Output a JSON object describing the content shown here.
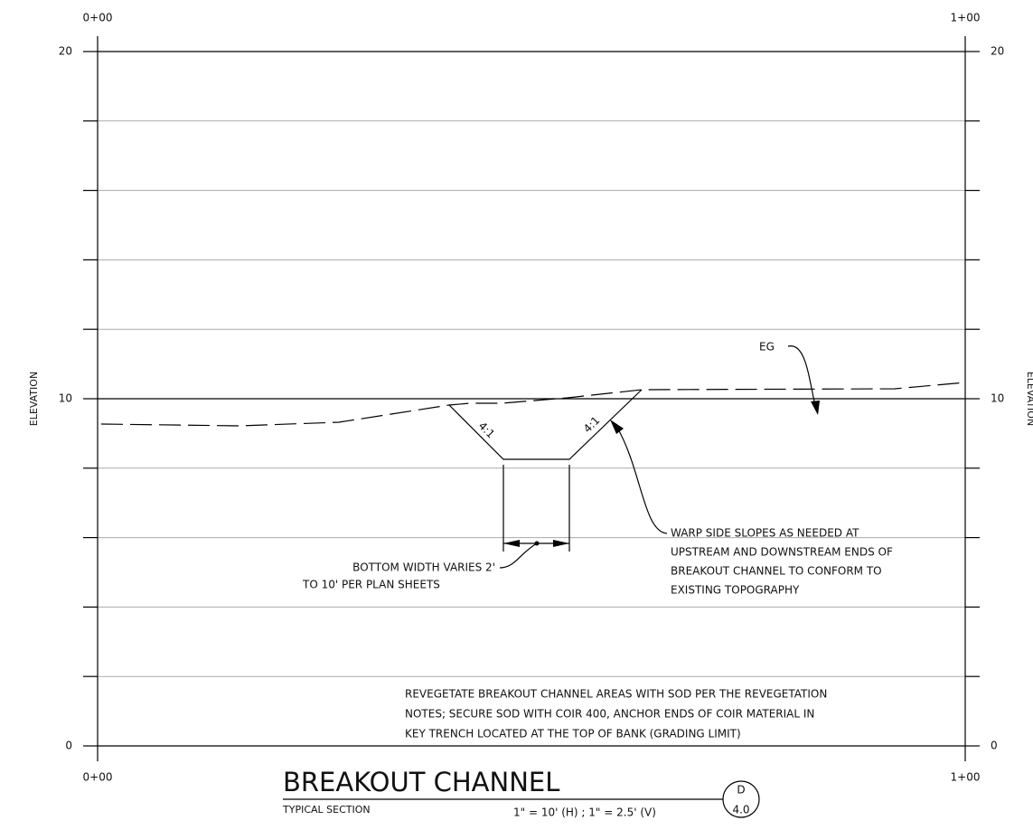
{
  "stations": {
    "top_left": "0+00",
    "top_right": "1+00",
    "bottom_left": "0+00",
    "bottom_right": "1+00"
  },
  "elevations": {
    "left": [
      "20",
      "10",
      "0"
    ],
    "right": [
      "20",
      "10",
      "0"
    ],
    "axis_label": "ELEVATION"
  },
  "labels": {
    "slope_left": "4:1",
    "slope_right": "4:1",
    "eg": "EG",
    "bottom_width": [
      "BOTTOM WIDTH VARIES 2'",
      "TO 10' PER PLAN SHEETS"
    ],
    "warp": [
      "WARP SIDE SLOPES AS NEEDED AT",
      "UPSTREAM AND DOWNSTREAM ENDS OF",
      "BREAKOUT CHANNEL TO CONFORM TO",
      "EXISTING TOPOGRAPHY"
    ],
    "note": [
      "REVEGETATE BREAKOUT CHANNEL AREAS WITH SOD PER THE REVEGETATION",
      "NOTES; SECURE SOD WITH COIR 400, ANCHOR ENDS OF COIR MATERIAL IN",
      "KEY TRENCH LOCATED AT THE TOP OF BANK (GRADING LIMIT)"
    ]
  },
  "title_block": {
    "title": "BREAKOUT CHANNEL",
    "subtitle": "TYPICAL SECTION",
    "scale": "1\" = 10' (H) ; 1\" = 2.5' (V)",
    "detail": "D",
    "sheet": "4.0"
  }
}
